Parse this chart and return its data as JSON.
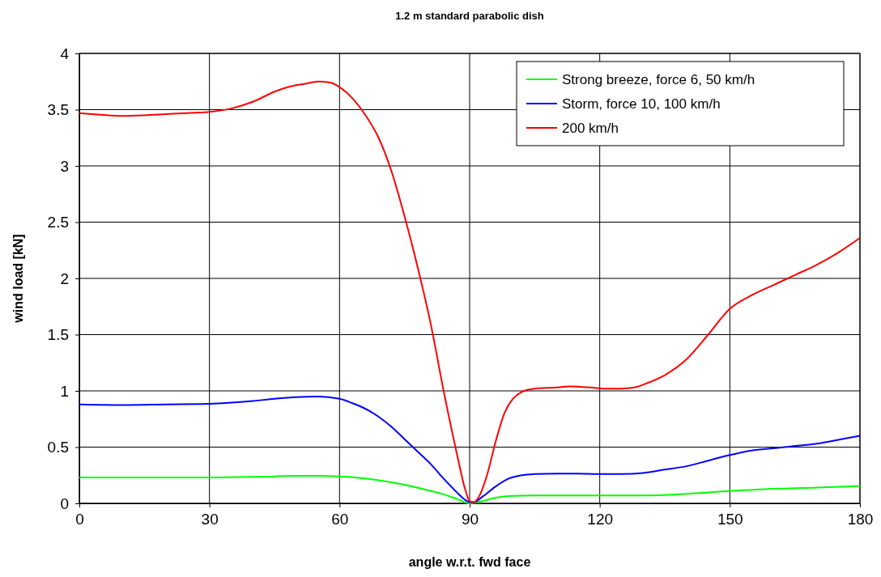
{
  "chart_data": {
    "type": "line",
    "title": "1.2 m standard parabolic dish",
    "xlabel": "angle w.r.t. fwd face",
    "ylabel": "wind load [kN]",
    "xlim": [
      0,
      180
    ],
    "xticks": [
      0,
      30,
      60,
      90,
      120,
      150,
      180
    ],
    "ylim": [
      0,
      4
    ],
    "yticks": [
      0,
      0.5,
      1,
      1.5,
      2,
      2.5,
      3,
      3.5,
      4
    ],
    "grid": true,
    "legend": "top right",
    "marker": "none",
    "line_style": "solid",
    "series": [
      {
        "name": "Strong breeze, force 6, 50 km/h",
        "color": "#00ff00",
        "x": [
          0,
          20,
          30,
          40,
          45,
          50,
          55,
          60,
          65,
          70,
          75,
          80,
          84,
          87,
          90,
          93,
          96,
          99,
          105,
          115,
          125,
          130,
          140,
          150,
          160,
          170,
          180
        ],
        "values": [
          0.23,
          0.23,
          0.23,
          0.235,
          0.24,
          0.245,
          0.245,
          0.24,
          0.225,
          0.2,
          0.165,
          0.12,
          0.08,
          0.04,
          0,
          0.02,
          0.05,
          0.065,
          0.07,
          0.07,
          0.07,
          0.07,
          0.085,
          0.11,
          0.13,
          0.14,
          0.155
        ]
      },
      {
        "name": "Storm, force 10, 100 km/h",
        "color": "#0000ff",
        "x": [
          0,
          10,
          20,
          30,
          40,
          45,
          50,
          55,
          60,
          63,
          66,
          69,
          72,
          75,
          78,
          81,
          84,
          87,
          89,
          90,
          91,
          93,
          96,
          99,
          102,
          105,
          110,
          115,
          120,
          125,
          130,
          135,
          140,
          145,
          150,
          155,
          160,
          165,
          170,
          175,
          180
        ],
        "values": [
          0.88,
          0.875,
          0.88,
          0.885,
          0.91,
          0.93,
          0.945,
          0.95,
          0.93,
          0.89,
          0.84,
          0.77,
          0.68,
          0.57,
          0.46,
          0.35,
          0.22,
          0.1,
          0.03,
          0.01,
          0.01,
          0.06,
          0.15,
          0.22,
          0.25,
          0.26,
          0.265,
          0.265,
          0.26,
          0.26,
          0.27,
          0.3,
          0.33,
          0.38,
          0.43,
          0.47,
          0.49,
          0.51,
          0.53,
          0.565,
          0.6
        ]
      },
      {
        "name": "200 km/h",
        "color": "#ff0000",
        "x": [
          0,
          5,
          10,
          15,
          20,
          25,
          30,
          35,
          40,
          45,
          48,
          52,
          55,
          58,
          60,
          63,
          66,
          69,
          72,
          75,
          78,
          81,
          84,
          87,
          89,
          90,
          91,
          92,
          94,
          96,
          98,
          100,
          102,
          105,
          110,
          113,
          118,
          121,
          125,
          128,
          131,
          135,
          140,
          145,
          150,
          155,
          160,
          165,
          170,
          175,
          180
        ],
        "values": [
          3.47,
          3.455,
          3.445,
          3.45,
          3.46,
          3.47,
          3.48,
          3.51,
          3.57,
          3.66,
          3.7,
          3.73,
          3.75,
          3.74,
          3.7,
          3.6,
          3.45,
          3.25,
          2.95,
          2.55,
          2.1,
          1.6,
          1,
          0.45,
          0.12,
          0.02,
          0.01,
          0.05,
          0.25,
          0.55,
          0.8,
          0.93,
          0.99,
          1.02,
          1.03,
          1.04,
          1.03,
          1.02,
          1.02,
          1.03,
          1.07,
          1.14,
          1.28,
          1.5,
          1.73,
          1.85,
          1.94,
          2.03,
          2.12,
          2.23,
          2.36
        ]
      }
    ]
  }
}
